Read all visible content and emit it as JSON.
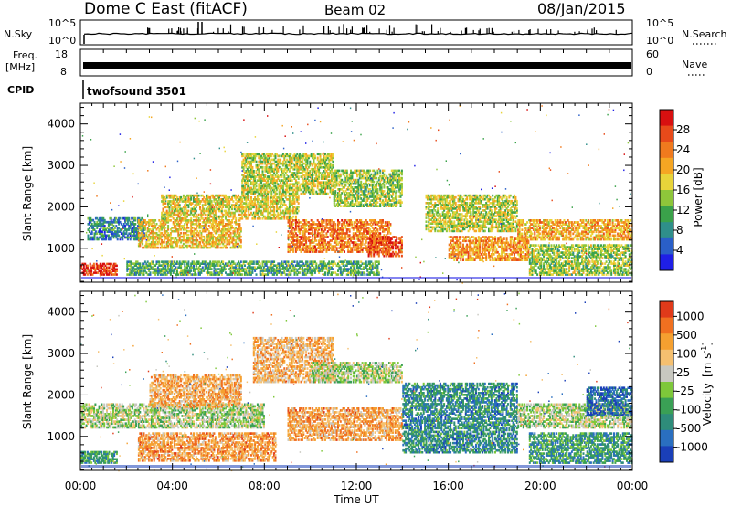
{
  "header": {
    "site": "Dome C East (fitACF)",
    "beam": "Beam 02",
    "date": "08/Jan/2015"
  },
  "strips": {
    "nsky": {
      "label": "N.Sky",
      "left_ticks": [
        "10^5",
        "10^0"
      ],
      "right_ticks": [
        "10^5",
        "10^0"
      ],
      "right_label": "N.Search"
    },
    "freq": {
      "label_line1": "Freq.",
      "label_line2": "[MHz]",
      "left_ticks": [
        "18",
        "8"
      ],
      "right_ticks": [
        "60",
        "0"
      ],
      "right_label": "Nave"
    },
    "cpid": {
      "label": "CPID",
      "program": "twofsound 3501"
    }
  },
  "chart_data": [
    {
      "type": "heatmap",
      "quantity": "Power",
      "ylabel": "Slant Range [km]",
      "ylim": [
        180,
        4500
      ],
      "y_ticks": [
        1000,
        2000,
        3000,
        4000
      ],
      "xlim": [
        0,
        24
      ],
      "colorbar": {
        "label": "Power [dB]",
        "ticks": [
          "4",
          "8",
          "12",
          "16",
          "20",
          "24",
          "28"
        ],
        "colors": [
          "#1f1fe6",
          "#2a5fc8",
          "#2f8f8a",
          "#3aa24a",
          "#8ec63a",
          "#e8d43a",
          "#f5a623",
          "#f07a1e",
          "#e84a1a",
          "#d81010"
        ]
      },
      "echo_regions": [
        {
          "t0": 0.0,
          "t1": 1.6,
          "r0": 350,
          "r1": 650,
          "level": 0.9
        },
        {
          "t0": 0.3,
          "t1": 2.8,
          "r0": 1200,
          "r1": 1750,
          "level": 0.25
        },
        {
          "t0": 2.5,
          "t1": 7.0,
          "r0": 1000,
          "r1": 1700,
          "level": 0.6
        },
        {
          "t0": 3.5,
          "t1": 9.5,
          "r0": 1700,
          "r1": 2300,
          "level": 0.55
        },
        {
          "t0": 7.0,
          "t1": 11.0,
          "r0": 2300,
          "r1": 3300,
          "level": 0.5
        },
        {
          "t0": 9.0,
          "t1": 13.5,
          "r0": 900,
          "r1": 1700,
          "level": 0.75
        },
        {
          "t0": 11.0,
          "t1": 14.0,
          "r0": 2000,
          "r1": 2900,
          "level": 0.45
        },
        {
          "t0": 12.5,
          "t1": 14.0,
          "r0": 800,
          "r1": 1300,
          "level": 0.85
        },
        {
          "t0": 15.0,
          "t1": 19.0,
          "r0": 1400,
          "r1": 2300,
          "level": 0.5
        },
        {
          "t0": 16.0,
          "t1": 19.5,
          "r0": 700,
          "r1": 1300,
          "level": 0.7
        },
        {
          "t0": 19.0,
          "t1": 24.0,
          "r0": 1200,
          "r1": 1700,
          "level": 0.65
        },
        {
          "t0": 19.5,
          "t1": 24.0,
          "r0": 350,
          "r1": 1100,
          "level": 0.45
        },
        {
          "t0": 2.0,
          "t1": 13.0,
          "r0": 350,
          "r1": 700,
          "level": 0.35
        }
      ]
    },
    {
      "type": "heatmap",
      "quantity": "Velocity",
      "ylabel": "Slant Range [km]",
      "ylim": [
        180,
        4500
      ],
      "y_ticks": [
        1000,
        2000,
        3000,
        4000
      ],
      "xlim": [
        0,
        24
      ],
      "xlabel": "Time UT",
      "x_ticks": [
        "00:00",
        "04:00",
        "08:00",
        "12:00",
        "16:00",
        "20:00",
        "00:00"
      ],
      "colorbar": {
        "label": "Velocity",
        "unit_text": "[m s",
        "unit_exp": "-1",
        "unit_close": "]",
        "ticks": [
          "1000",
          "500",
          "100",
          "25",
          "-25",
          "-100",
          "-500",
          "-1000"
        ],
        "colors": [
          "#1a3fb8",
          "#2a6fc0",
          "#2e8c7a",
          "#3aa055",
          "#7ec83a",
          "#c8c8c0",
          "#f5c070",
          "#f5a030",
          "#f07020",
          "#e03a1a"
        ]
      },
      "echo_regions": [
        {
          "t0": 0.0,
          "t1": 1.6,
          "r0": 350,
          "r1": 650,
          "level": 0.3
        },
        {
          "t0": 0.0,
          "t1": 8.0,
          "r0": 1200,
          "r1": 1800,
          "level": 0.5
        },
        {
          "t0": 3.0,
          "t1": 7.0,
          "r0": 1700,
          "r1": 2500,
          "level": 0.72
        },
        {
          "t0": 2.5,
          "t1": 8.5,
          "r0": 400,
          "r1": 1100,
          "level": 0.75
        },
        {
          "t0": 7.5,
          "t1": 11.0,
          "r0": 2300,
          "r1": 3400,
          "level": 0.7
        },
        {
          "t0": 9.0,
          "t1": 14.0,
          "r0": 900,
          "r1": 1700,
          "level": 0.73
        },
        {
          "t0": 10.0,
          "t1": 14.0,
          "r0": 2300,
          "r1": 2800,
          "level": 0.5
        },
        {
          "t0": 14.0,
          "t1": 19.0,
          "r0": 600,
          "r1": 2300,
          "level": 0.25
        },
        {
          "t0": 19.0,
          "t1": 24.0,
          "r0": 1200,
          "r1": 1800,
          "level": 0.5
        },
        {
          "t0": 19.5,
          "t1": 24.0,
          "r0": 350,
          "r1": 1100,
          "level": 0.3
        },
        {
          "t0": 22.0,
          "t1": 24.0,
          "r0": 1500,
          "r1": 2200,
          "level": 0.15
        }
      ]
    }
  ]
}
